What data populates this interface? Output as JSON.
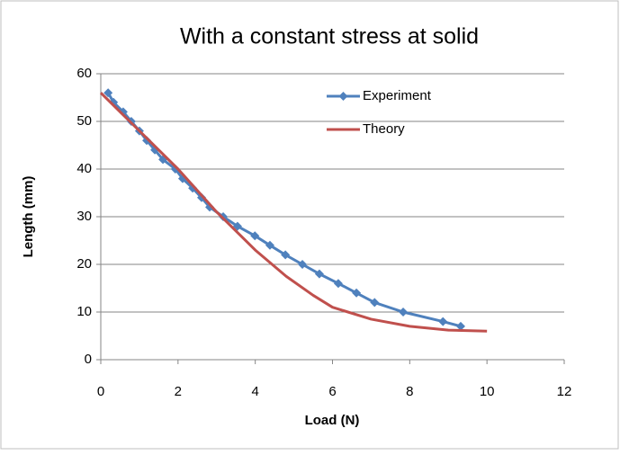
{
  "chart_data": {
    "type": "line",
    "title": "With a constant stress at solid",
    "x_label": "Load (N)",
    "y_label": "Length (mm)",
    "xlim": [
      0,
      12
    ],
    "xticks": [
      0,
      2,
      4,
      6,
      8,
      10,
      12
    ],
    "ylim": [
      0,
      60
    ],
    "yticks": [
      0,
      10,
      20,
      30,
      40,
      50,
      60
    ],
    "grid": true,
    "legend": "top-right",
    "series": [
      {
        "name": "Experiment",
        "color": "#4f81bd",
        "marker": "diamond",
        "x": [
          0.19,
          0.33,
          0.58,
          0.79,
          1.0,
          1.19,
          1.4,
          1.61,
          1.93,
          2.12,
          2.38,
          2.61,
          2.82,
          3.17,
          3.54,
          3.99,
          4.38,
          4.78,
          5.22,
          5.66,
          6.15,
          6.62,
          7.09,
          7.83,
          8.86,
          9.32
        ],
        "values": [
          56,
          54,
          52,
          50,
          48,
          46,
          44,
          42,
          40,
          38,
          36,
          34,
          32,
          30,
          28,
          26,
          24,
          22,
          20,
          18,
          16,
          14,
          12,
          10,
          8,
          7
        ]
      },
      {
        "name": "Theory",
        "color": "#c0504d",
        "x": [
          0,
          1,
          2,
          3,
          4,
          4.8,
          5.5,
          6,
          7,
          8,
          9,
          10
        ],
        "values": [
          56,
          48,
          40,
          31,
          23,
          17.5,
          13.5,
          11,
          8.5,
          7,
          6.2,
          6
        ]
      }
    ]
  }
}
